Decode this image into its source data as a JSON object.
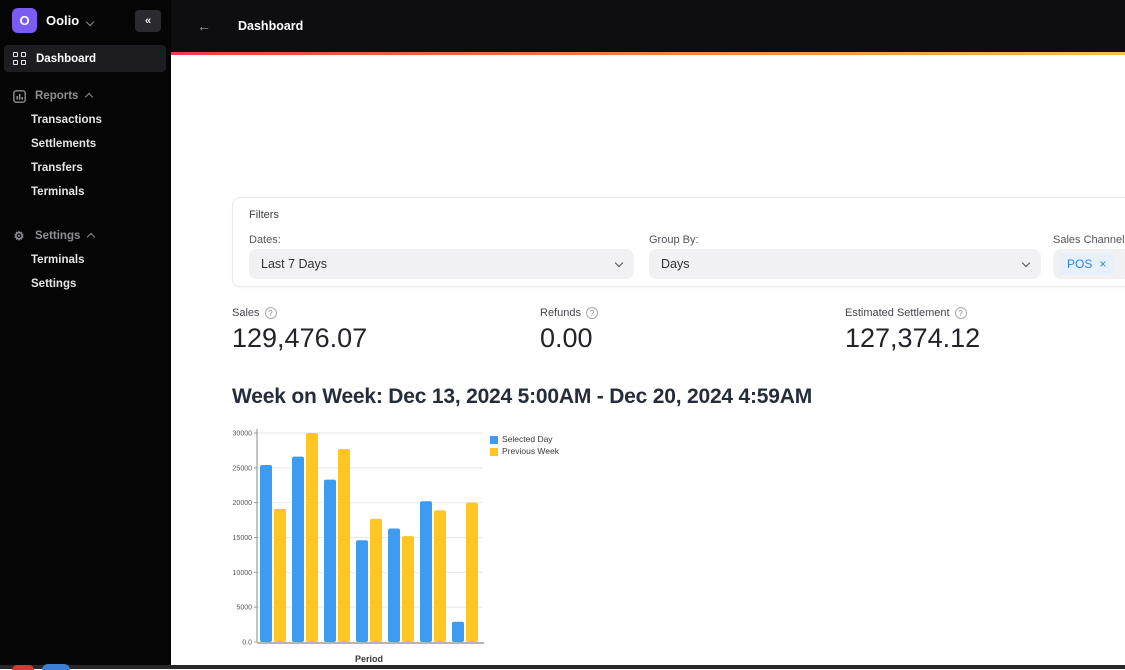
{
  "icons": {
    "back": "←",
    "collapse": "«",
    "gear": "⚙",
    "help": "?",
    "close": "×"
  },
  "sidebar": {
    "brand": {
      "name": "Oolio",
      "logo_letter": "O"
    },
    "items": [
      {
        "label": "Dashboard",
        "active": true
      }
    ],
    "sections": [
      {
        "label": "Reports",
        "children": [
          "Transactions",
          "Settlements",
          "Transfers",
          "Terminals"
        ]
      },
      {
        "label": "Settings",
        "children": [
          "Terminals",
          "Settings"
        ]
      }
    ]
  },
  "topbar": {
    "title": "Dashboard"
  },
  "filters": {
    "title": "Filters",
    "dates_label": "Dates:",
    "dates_value": "Last 7 Days",
    "group_by_label": "Group By:",
    "group_by_value": "Days",
    "sales_channel_label": "Sales Channel:",
    "sales_channel_tags": [
      {
        "label": "POS"
      }
    ]
  },
  "stats": [
    {
      "label": "Sales",
      "value": "129,476.07"
    },
    {
      "label": "Refunds",
      "value": "0.00"
    },
    {
      "label": "Estimated Settlement",
      "value": "127,374.12"
    }
  ],
  "chart_section_title": "Week on Week: Dec 13, 2024 5:00AM - Dec 20, 2024 4:59AM",
  "chart_data": {
    "type": "bar",
    "title": "Week on Week: Dec 13, 2024 5:00AM - Dec 20, 2024 4:59AM",
    "categories": [
      "",
      "",
      "",
      "",
      "",
      "",
      ""
    ],
    "series": [
      {
        "name": "Selected Day",
        "color": "#3d9bf0",
        "values": [
          25400,
          26600,
          23300,
          14600,
          16300,
          20200,
          2900
        ]
      },
      {
        "name": "Previous Week",
        "color": "#ffc524",
        "values": [
          19100,
          30000,
          27700,
          17700,
          15200,
          18900,
          20000
        ]
      }
    ],
    "xlabel": "Period",
    "ylabel": "",
    "ylim": [
      0,
      30000
    ],
    "yticks": [
      "0.0",
      "5000",
      "10000",
      "15000",
      "20000",
      "25000",
      "30000"
    ],
    "grid": true,
    "legend_position": "top-right"
  },
  "colors": {
    "accent_purple": "#7a5cf5",
    "bar_blue": "#3d9bf0",
    "bar_yellow": "#ffc524",
    "tag_blue": "#2f80ed",
    "gradient_left": "#e9404b",
    "gradient_right": "#eec14f"
  }
}
